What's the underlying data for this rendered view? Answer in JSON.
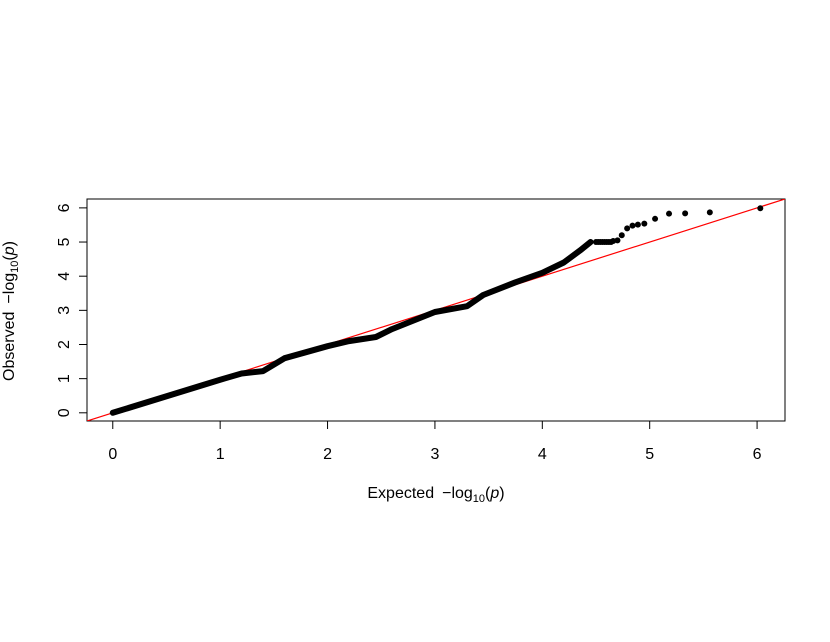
{
  "chart_data": {
    "type": "scatter",
    "title": "",
    "xlabel": {
      "pre": "Expected",
      "minus": "−",
      "log": "log",
      "sub": "10",
      "open": "(",
      "p": "p",
      "close": ")"
    },
    "ylabel": {
      "pre": "Observed",
      "minus": "−",
      "log": "log",
      "sub": "10",
      "open": "(",
      "p": "p",
      "close": ")"
    },
    "xlim": [
      -0.24,
      6.26
    ],
    "ylim": [
      -0.24,
      6.26
    ],
    "x_ticks": [
      0,
      1,
      2,
      3,
      4,
      5,
      6
    ],
    "y_ticks": [
      0,
      1,
      2,
      3,
      4,
      5,
      6
    ],
    "x_tick_labels": [
      "0",
      "1",
      "2",
      "3",
      "4",
      "5",
      "6"
    ],
    "y_tick_labels": [
      "0",
      "1",
      "2",
      "3",
      "4",
      "5",
      "6"
    ],
    "point_color": "#000000",
    "reference_line": {
      "slope": 1,
      "intercept": 0,
      "color": "#ff0000"
    },
    "grid": false,
    "trace_knots": [
      [
        0.0,
        0.0
      ],
      [
        1.0,
        0.97
      ],
      [
        1.2,
        1.15
      ],
      [
        1.4,
        1.22
      ],
      [
        1.6,
        1.6
      ],
      [
        2.0,
        1.95
      ],
      [
        2.2,
        2.1
      ],
      [
        2.45,
        2.22
      ],
      [
        2.6,
        2.45
      ],
      [
        3.0,
        2.95
      ],
      [
        3.3,
        3.12
      ],
      [
        3.45,
        3.45
      ],
      [
        3.75,
        3.82
      ],
      [
        4.0,
        4.1
      ],
      [
        4.2,
        4.4
      ],
      [
        4.35,
        4.75
      ],
      [
        4.45,
        5.0
      ]
    ],
    "points": [
      [
        4.5,
        5.0
      ],
      [
        4.52,
        5.0
      ],
      [
        4.54,
        5.0
      ],
      [
        4.56,
        5.0
      ],
      [
        4.58,
        5.0
      ],
      [
        4.6,
        5.0
      ],
      [
        4.62,
        5.0
      ],
      [
        4.64,
        5.0
      ],
      [
        4.66,
        5.03
      ],
      [
        4.7,
        5.05
      ],
      [
        4.74,
        5.2
      ],
      [
        4.79,
        5.4
      ],
      [
        4.84,
        5.48
      ],
      [
        4.89,
        5.51
      ],
      [
        4.95,
        5.54
      ],
      [
        5.05,
        5.68
      ],
      [
        5.18,
        5.83
      ],
      [
        5.33,
        5.84
      ],
      [
        5.56,
        5.87
      ],
      [
        6.03,
        5.99
      ]
    ]
  }
}
